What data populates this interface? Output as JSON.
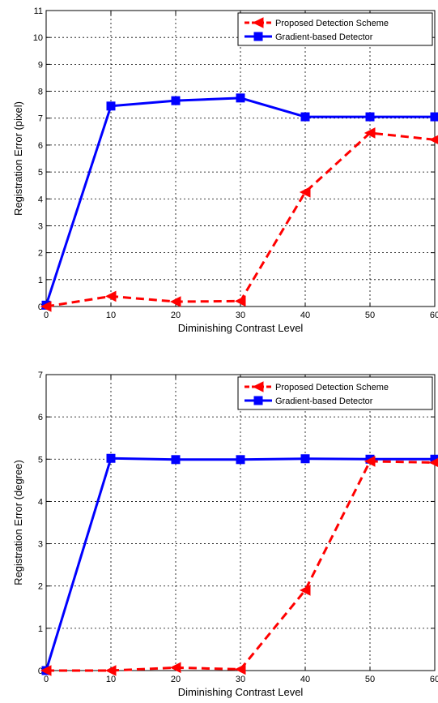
{
  "chart_data": [
    {
      "type": "line",
      "title": "",
      "xlabel": "Diminishing Contrast Level",
      "ylabel": "Registration Error  (pixel)",
      "xlim": [
        0,
        60
      ],
      "ylim": [
        0,
        11
      ],
      "x_ticks": [
        "0",
        "10",
        "20",
        "30",
        "40",
        "50",
        "60"
      ],
      "y_ticks": [
        "0",
        "1",
        "2",
        "3",
        "4",
        "5",
        "6",
        "7",
        "8",
        "9",
        "10",
        "11"
      ],
      "grid": true,
      "legend_position": "top-right",
      "x": [
        0,
        10,
        20,
        30,
        40,
        50,
        60
      ],
      "series": [
        {
          "name": "Proposed Detection Scheme",
          "color": "#ff0000",
          "style": "dashed",
          "marker": "triangle-left",
          "values": [
            0.0,
            0.38,
            0.18,
            0.2,
            4.25,
            6.45,
            6.2
          ]
        },
        {
          "name": "Gradient-based Detector",
          "color": "#0000ff",
          "style": "solid",
          "marker": "square",
          "values": [
            0.05,
            7.45,
            7.65,
            7.75,
            7.05,
            7.05,
            7.05
          ]
        }
      ]
    },
    {
      "type": "line",
      "title": "",
      "xlabel": "Diminishing Contrast Level",
      "ylabel": "Registration Error  (degree)",
      "xlim": [
        0,
        60
      ],
      "ylim": [
        0,
        7
      ],
      "x_ticks": [
        "0",
        "10",
        "20",
        "30",
        "40",
        "50",
        "60"
      ],
      "y_ticks": [
        "0",
        "1",
        "2",
        "3",
        "4",
        "5",
        "6",
        "7"
      ],
      "grid": true,
      "legend_position": "top-right",
      "x": [
        0,
        10,
        20,
        30,
        40,
        50,
        60
      ],
      "series": [
        {
          "name": "Proposed Detection Scheme",
          "color": "#ff0000",
          "style": "dashed",
          "marker": "triangle-left",
          "values": [
            0.0,
            0.0,
            0.07,
            0.03,
            1.9,
            4.95,
            4.92
          ]
        },
        {
          "name": "Gradient-based Detector",
          "color": "#0000ff",
          "style": "solid",
          "marker": "square",
          "values": [
            0.0,
            5.02,
            4.99,
            4.99,
            5.01,
            5.0,
            5.0
          ]
        }
      ]
    }
  ]
}
